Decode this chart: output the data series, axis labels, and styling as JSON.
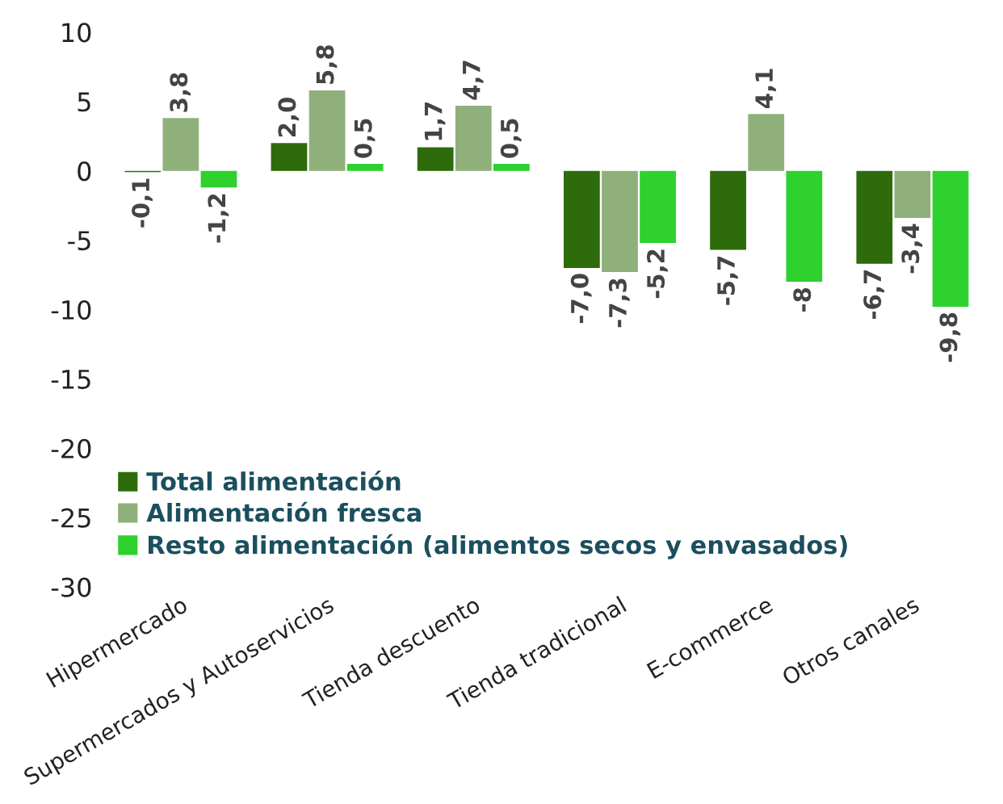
{
  "chart_data": {
    "type": "bar",
    "categories": [
      "Hipermercado",
      "Supermercados y Autoservicios",
      "Tienda descuento",
      "Tienda tradicional",
      "E-commerce",
      "Otros canales"
    ],
    "series": [
      {
        "name": "Total alimentación",
        "color": "#2e6b0b",
        "values": [
          -0.1,
          2.0,
          1.7,
          -7.0,
          -5.7,
          -6.7
        ],
        "value_labels": [
          "-0,1",
          "2,0",
          "1,7",
          "-7,0",
          "-5,7",
          "-6,7"
        ]
      },
      {
        "name": "Alimentación fresca",
        "color": "#8fb07a",
        "values": [
          3.8,
          5.8,
          4.7,
          -7.3,
          4.1,
          -3.4
        ],
        "value_labels": [
          "3,8",
          "5,8",
          "4,7",
          "-7,3",
          "4,1",
          "-3,4"
        ]
      },
      {
        "name": "Resto alimentación (alimentos secos y envasados)",
        "color": "#2ed12e",
        "values": [
          -1.2,
          0.5,
          0.5,
          -5.2,
          -8,
          -9.8
        ],
        "value_labels": [
          "-1,2",
          "0,5",
          "0,5",
          "-5,2",
          "-8",
          "-9,8"
        ]
      }
    ],
    "ylim": [
      -30,
      10
    ],
    "yticks": [
      -30,
      -25,
      -20,
      -15,
      -10,
      -5,
      0,
      5,
      10
    ],
    "legend": "bottom",
    "grid": false
  }
}
